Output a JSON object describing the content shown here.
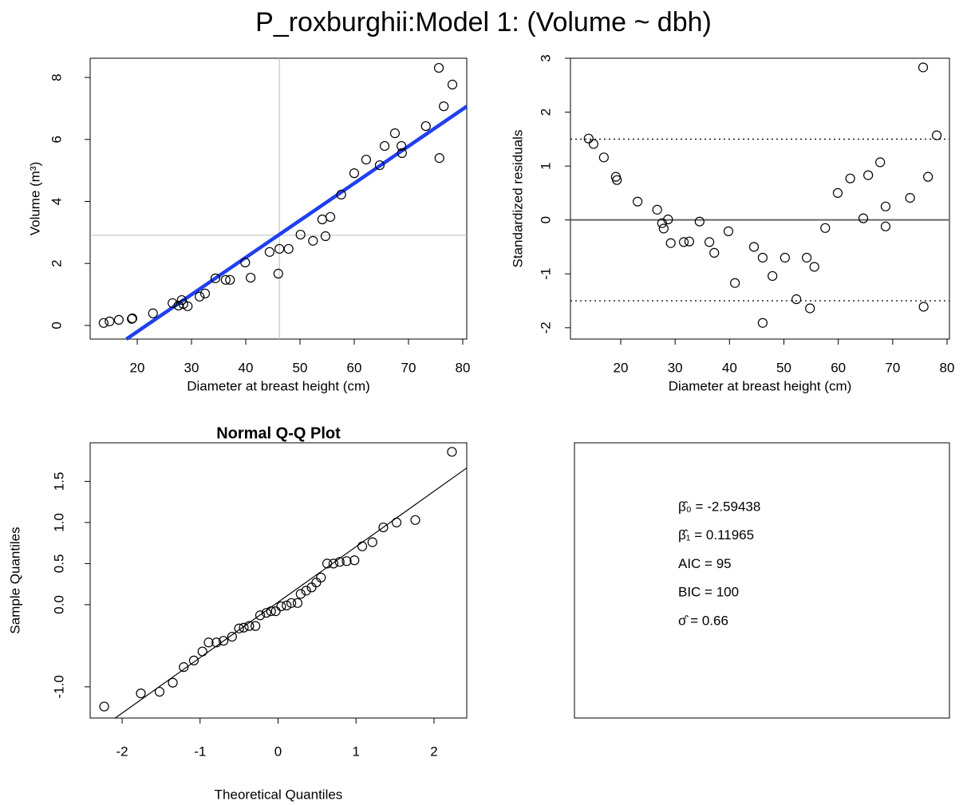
{
  "title": "P_roxburghii:Model 1: (Volume ~ dbh)",
  "title_color": "#2448f2",
  "chart_data": [
    {
      "type": "scatter",
      "x_label": "Diameter at breast height (cm)",
      "y_label": "Volume (m³)",
      "xlim": [
        11.32,
        80.74
      ],
      "ylim": [
        -0.44,
        8.62
      ],
      "xticks": [
        20,
        30,
        40,
        50,
        60,
        70,
        80
      ],
      "yticks": [
        0,
        2,
        4,
        6,
        8
      ],
      "x": [
        13.8,
        14.9,
        16.6,
        19.0,
        19.1,
        22.9,
        26.5,
        27.6,
        28.2,
        28.5,
        29.3,
        31.5,
        32.5,
        34.4,
        36.3,
        37.1,
        39.9,
        40.9,
        44.4,
        46.0,
        46.2,
        47.9,
        50.1,
        52.4,
        54.1,
        54.7,
        55.6,
        57.6,
        60.0,
        62.2,
        64.7,
        65.6,
        67.5,
        68.7,
        68.8,
        73.2,
        75.7,
        75.6,
        76.5,
        78.1
      ],
      "values": [
        0.08,
        0.13,
        0.18,
        0.21,
        0.23,
        0.39,
        0.72,
        0.64,
        0.82,
        0.69,
        0.62,
        0.93,
        1.03,
        1.52,
        1.47,
        1.47,
        2.03,
        1.54,
        2.37,
        1.67,
        2.47,
        2.47,
        2.93,
        2.73,
        3.42,
        2.88,
        3.5,
        4.22,
        4.91,
        5.35,
        5.17,
        5.79,
        6.2,
        5.79,
        5.56,
        6.43,
        5.4,
        8.31,
        7.07,
        7.77
      ],
      "color": "#000000",
      "fit_line": {
        "intercept": -2.59438,
        "slope": 0.11965,
        "color": "#1f3ff0"
      },
      "ref_lines": {
        "x": 46.2,
        "y": 2.91,
        "color": "#bbbbbb"
      }
    },
    {
      "type": "scatter",
      "x_label": "Diameter at breast height (cm)",
      "y_label": "Standardized residuals",
      "xlim": [
        10.76,
        80.44
      ],
      "ylim": [
        -2.21,
        3.0
      ],
      "xticks": [
        20,
        30,
        40,
        50,
        60,
        70,
        80
      ],
      "yticks": [
        -2,
        -1,
        0,
        1,
        2,
        3
      ],
      "x": [
        14.1,
        15.0,
        16.9,
        19.1,
        19.3,
        23.1,
        26.7,
        27.6,
        27.9,
        28.7,
        29.2,
        31.6,
        32.6,
        34.5,
        36.3,
        37.2,
        39.8,
        41.0,
        44.5,
        46.1,
        46.1,
        47.9,
        50.2,
        52.3,
        54.2,
        54.8,
        55.6,
        57.6,
        59.9,
        62.2,
        64.6,
        65.5,
        67.7,
        68.7,
        68.7,
        73.2,
        75.6,
        75.7,
        76.5,
        78.1
      ],
      "values": [
        1.51,
        1.41,
        1.16,
        0.8,
        0.74,
        0.34,
        0.19,
        -0.06,
        -0.16,
        0.01,
        -0.43,
        -0.41,
        -0.4,
        -0.03,
        -0.41,
        -0.61,
        -0.21,
        -1.17,
        -0.5,
        -0.7,
        -1.91,
        -1.04,
        -0.7,
        -1.47,
        -0.7,
        -1.64,
        -0.87,
        -0.15,
        0.5,
        0.77,
        0.03,
        0.83,
        1.07,
        0.25,
        -0.12,
        0.41,
        2.83,
        -1.61,
        0.8,
        1.57
      ],
      "color": "#000000",
      "hlines": [
        {
          "y": 0,
          "style": "solid",
          "color": "#666666"
        },
        {
          "y": 1.5,
          "style": "dotted",
          "color": "#000000"
        },
        {
          "y": -1.5,
          "style": "dotted",
          "color": "#000000"
        }
      ]
    },
    {
      "type": "scatter",
      "title": "Normal Q-Q Plot",
      "x_label": "Theoretical Quantiles",
      "y_label": "Sample Quantiles",
      "xlim": [
        -2.41,
        2.42
      ],
      "ylim": [
        -1.38,
        1.97
      ],
      "xticks": [
        -2,
        -1,
        0,
        1,
        2
      ],
      "yticks": [
        {
          "value": -1,
          "label": "-1.0"
        },
        {
          "value": 0,
          "label": "0.0"
        },
        0.5,
        {
          "value": 1,
          "label": "1.0"
        },
        1.5
      ],
      "x": [
        -2.23,
        -1.76,
        -1.52,
        -1.35,
        -1.21,
        -1.08,
        -0.97,
        -0.89,
        -0.79,
        -0.7,
        -0.59,
        -0.5,
        -0.44,
        -0.37,
        -0.29,
        -0.23,
        -0.15,
        -0.09,
        -0.03,
        0.04,
        0.11,
        0.17,
        0.25,
        0.29,
        0.36,
        0.43,
        0.49,
        0.55,
        0.63,
        0.71,
        0.79,
        0.88,
        0.98,
        1.08,
        1.21,
        1.35,
        1.52,
        1.76,
        2.23
      ],
      "values": [
        -1.24,
        -1.08,
        -1.06,
        -0.95,
        -0.76,
        -0.68,
        -0.57,
        -0.46,
        -0.46,
        -0.44,
        -0.39,
        -0.29,
        -0.28,
        -0.26,
        -0.26,
        -0.13,
        -0.1,
        -0.08,
        -0.08,
        -0.02,
        -0.01,
        0.02,
        0.02,
        0.13,
        0.17,
        0.21,
        0.27,
        0.33,
        0.5,
        0.5,
        0.52,
        0.53,
        0.54,
        0.71,
        0.76,
        0.94,
        1.0,
        1.03,
        1.86
      ],
      "color": "#000000",
      "fit_line": {
        "intercept": 0.03,
        "slope": 0.675,
        "color": "#000000"
      }
    },
    {
      "type": "text",
      "lines": [
        "β̂₀ = -2.59438",
        "β̂₁ = 0.11965",
        "AIC = 95",
        "BIC = 100",
        "σ̂ = 0.66"
      ]
    }
  ]
}
